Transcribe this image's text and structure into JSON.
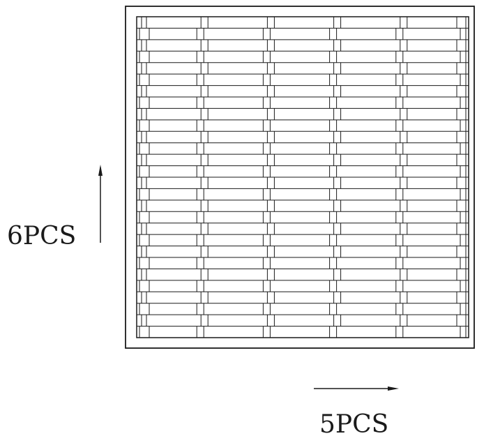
{
  "labels": {
    "vertical_count": "6PCS",
    "horizontal_count": "5PCS"
  },
  "grid": {
    "columns": 5,
    "rows": 28
  },
  "colors": {
    "line": "#1a1a1a",
    "background": "#ffffff"
  },
  "arrows": {
    "vertical_direction": "up",
    "horizontal_direction": "right"
  }
}
